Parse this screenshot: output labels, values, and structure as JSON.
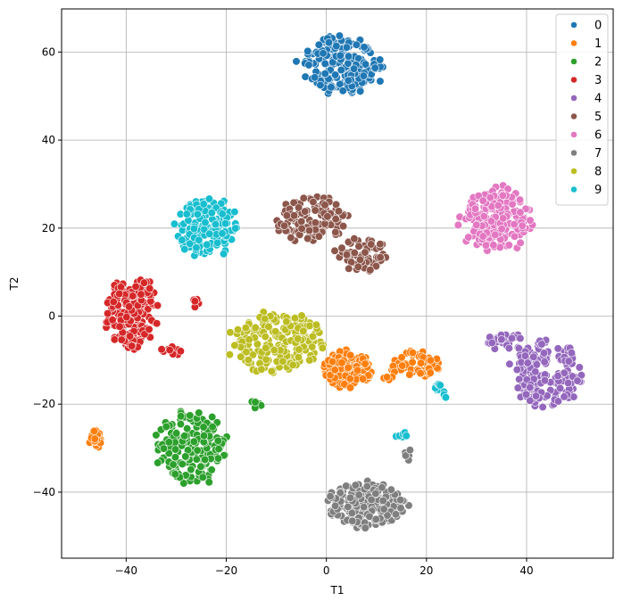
{
  "chart_data": {
    "type": "scatter",
    "title": "",
    "xlabel": "T1",
    "ylabel": "T2",
    "xlim": [
      -52.9,
      57.3
    ],
    "ylim": [
      -55,
      69.8
    ],
    "xticks": [
      -40,
      -20,
      0,
      20,
      40
    ],
    "yticks": [
      -40,
      -20,
      0,
      20,
      40,
      60
    ],
    "xtick_labels": [
      "−40",
      "−20",
      "0",
      "20",
      "40"
    ],
    "ytick_labels": [
      "−40",
      "−20",
      "0",
      "20",
      "40",
      "60"
    ],
    "grid": true,
    "legend_position": "top-right",
    "series": [
      {
        "name": "0",
        "color": "#1f77b4",
        "clusters": [
          {
            "cx": 3,
            "cy": 57,
            "rx": 8,
            "ry": 6.5,
            "n": 200
          }
        ]
      },
      {
        "name": "1",
        "color": "#ff7f0e",
        "clusters": [
          {
            "cx": 4,
            "cy": -12,
            "rx": 5,
            "ry": 4,
            "n": 130
          },
          {
            "cx": 18,
            "cy": -11,
            "rx": 5,
            "ry": 3,
            "n": 60
          },
          {
            "cx": -46,
            "cy": -28,
            "rx": 1.3,
            "ry": 2.2,
            "n": 20
          },
          {
            "cx": 12,
            "cy": -14,
            "rx": 1.5,
            "ry": 0.8,
            "n": 4
          }
        ]
      },
      {
        "name": "2",
        "color": "#2ca02c",
        "clusters": [
          {
            "cx": -27,
            "cy": -30,
            "rx": 7,
            "ry": 8,
            "n": 180
          },
          {
            "cx": -14,
            "cy": -20,
            "rx": 1.2,
            "ry": 0.8,
            "n": 6
          }
        ]
      },
      {
        "name": "3",
        "color": "#d62728",
        "clusters": [
          {
            "cx": -39,
            "cy": 1,
            "rx": 5,
            "ry": 8,
            "n": 180
          },
          {
            "cx": -31,
            "cy": -8,
            "rx": 2,
            "ry": 1,
            "n": 10
          },
          {
            "cx": -26,
            "cy": 3,
            "rx": 1,
            "ry": 1,
            "n": 5
          }
        ]
      },
      {
        "name": "4",
        "color": "#9467bd",
        "clusters": [
          {
            "cx": 44,
            "cy": -13,
            "rx": 7,
            "ry": 7,
            "n": 160
          },
          {
            "cx": 36,
            "cy": -6,
            "rx": 4,
            "ry": 2,
            "n": 25
          }
        ]
      },
      {
        "name": "5",
        "color": "#8c564b",
        "clusters": [
          {
            "cx": -3,
            "cy": 22,
            "rx": 7,
            "ry": 5,
            "n": 120
          },
          {
            "cx": 7,
            "cy": 14,
            "rx": 5,
            "ry": 4,
            "n": 60
          }
        ]
      },
      {
        "name": "6",
        "color": "#e377c2",
        "clusters": [
          {
            "cx": 34,
            "cy": 22,
            "rx": 7,
            "ry": 7,
            "n": 190
          }
        ]
      },
      {
        "name": "7",
        "color": "#7f7f7f",
        "clusters": [
          {
            "cx": 8,
            "cy": -43,
            "rx": 8,
            "ry": 5,
            "n": 190
          },
          {
            "cx": 16,
            "cy": -31,
            "rx": 1.5,
            "ry": 2,
            "n": 6
          }
        ]
      },
      {
        "name": "8",
        "color": "#bcbd22",
        "clusters": [
          {
            "cx": -10,
            "cy": -6,
            "rx": 9,
            "ry": 7,
            "n": 190
          }
        ]
      },
      {
        "name": "9",
        "color": "#17becf",
        "clusters": [
          {
            "cx": -24,
            "cy": 20,
            "rx": 6,
            "ry": 6.5,
            "n": 170
          },
          {
            "cx": 23,
            "cy": -17,
            "rx": 1.2,
            "ry": 1.8,
            "n": 10
          },
          {
            "cx": 15,
            "cy": -27,
            "rx": 1,
            "ry": 1,
            "n": 6
          }
        ]
      }
    ]
  }
}
